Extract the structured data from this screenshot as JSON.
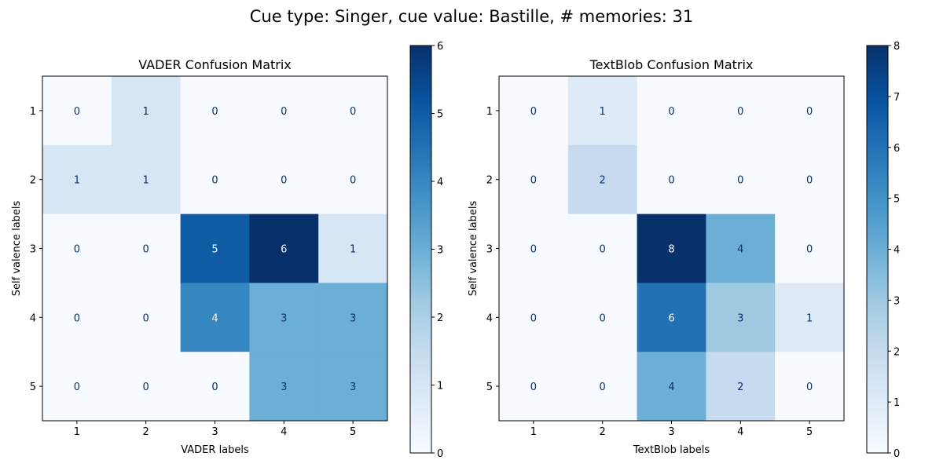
{
  "suptitle": "Cue type: Singer, cue value: Bastille, # memories: 31",
  "chart_data": [
    {
      "type": "heatmap",
      "title": "VADER Confusion Matrix",
      "xlabel": "VADER labels",
      "ylabel": "Self valence labels",
      "x_categories": [
        "1",
        "2",
        "3",
        "4",
        "5"
      ],
      "y_categories": [
        "1",
        "2",
        "3",
        "4",
        "5"
      ],
      "values": [
        [
          0,
          1,
          0,
          0,
          0
        ],
        [
          1,
          1,
          0,
          0,
          0
        ],
        [
          0,
          0,
          5,
          6,
          1
        ],
        [
          0,
          0,
          4,
          3,
          3
        ],
        [
          0,
          0,
          0,
          3,
          3
        ]
      ],
      "colormap": "Blues",
      "colorbar_range": [
        0,
        6
      ],
      "colorbar_ticks": [
        "0",
        "1",
        "2",
        "3",
        "4",
        "5",
        "6"
      ]
    },
    {
      "type": "heatmap",
      "title": "TextBlob Confusion Matrix",
      "xlabel": "TextBlob labels",
      "ylabel": "Self valence labels",
      "x_categories": [
        "1",
        "2",
        "3",
        "4",
        "5"
      ],
      "y_categories": [
        "1",
        "2",
        "3",
        "4",
        "5"
      ],
      "values": [
        [
          0,
          1,
          0,
          0,
          0
        ],
        [
          0,
          2,
          0,
          0,
          0
        ],
        [
          0,
          0,
          8,
          4,
          0
        ],
        [
          0,
          0,
          6,
          3,
          1
        ],
        [
          0,
          0,
          4,
          2,
          0
        ]
      ],
      "colormap": "Blues",
      "colorbar_range": [
        0,
        8
      ],
      "colorbar_ticks": [
        "0",
        "1",
        "2",
        "3",
        "4",
        "5",
        "6",
        "7",
        "8"
      ]
    }
  ]
}
